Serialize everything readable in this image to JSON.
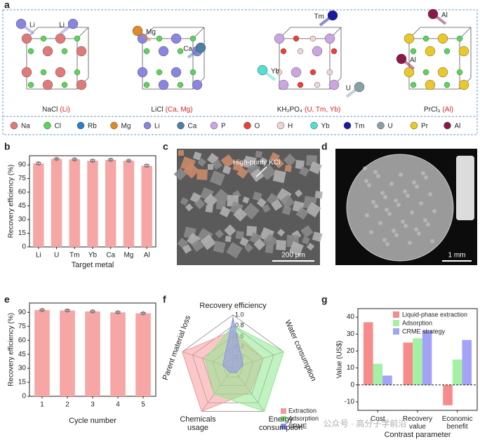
{
  "panel_labels": [
    "a",
    "b",
    "c",
    "d",
    "e",
    "f",
    "g"
  ],
  "panel_a": {
    "crystals": [
      {
        "formula": "NaCl",
        "targets": "(Li)",
        "elements": [
          "Li",
          "Li"
        ]
      },
      {
        "formula": "LiCl",
        "targets": "(Ca, Mg)",
        "elements": [
          "Mg",
          "Ca"
        ]
      },
      {
        "formula": "KH₂PO₄",
        "targets": "(U, Tm, Yb)",
        "elements": [
          "Tm",
          "Yb",
          "U"
        ]
      },
      {
        "formula": "PrCl₃",
        "targets": "(Al)",
        "elements": [
          "Al",
          "Al"
        ]
      }
    ],
    "legend": [
      {
        "name": "Na",
        "color": "#e07a7a"
      },
      {
        "name": "Cl",
        "color": "#5bd45b"
      },
      {
        "name": "Rb",
        "color": "#2a7fc9"
      },
      {
        "name": "Mg",
        "color": "#e08a2a"
      },
      {
        "name": "Li",
        "color": "#8a86e0"
      },
      {
        "name": "Ca",
        "color": "#4f7fa0"
      },
      {
        "name": "P",
        "color": "#c9a6e0"
      },
      {
        "name": "O",
        "color": "#e8413a"
      },
      {
        "name": "H",
        "color": "#f0d4d4"
      },
      {
        "name": "Yb",
        "color": "#4fe0d0"
      },
      {
        "name": "Tm",
        "color": "#1a1aa0"
      },
      {
        "name": "U",
        "color": "#8aa0a8"
      },
      {
        "name": "Pr",
        "color": "#e8c82a"
      },
      {
        "name": "Al",
        "color": "#8a1a4a"
      }
    ]
  },
  "panel_c": {
    "annotation": "High-purity KCl",
    "scale_bar": "200 μm"
  },
  "panel_d": {
    "scale_bar": "1 mm"
  },
  "chart_data": [
    {
      "type": "bar",
      "categories": [
        "Li",
        "U",
        "Tm",
        "Yb",
        "Ca",
        "Mg",
        "Al"
      ],
      "values": [
        91.5,
        96.5,
        96,
        94.5,
        95.5,
        94.5,
        89
      ],
      "error": [
        1.2,
        0.8,
        0.8,
        1,
        0.8,
        0.8,
        1.2
      ],
      "color": "#f7a6a6",
      "ylim": [
        0,
        100
      ],
      "yticks": [
        0,
        15,
        30,
        45,
        60,
        75,
        90
      ],
      "y_label": "Recovery efficiency (%)",
      "x_label": "Target metal"
    },
    {
      "type": "bar",
      "categories": [
        "1",
        "2",
        "3",
        "4",
        "5"
      ],
      "values": [
        92.5,
        92,
        91,
        90,
        89
      ],
      "error": [
        0.8,
        0.8,
        0.8,
        0.8,
        0.8
      ],
      "color": "#f7a6a6",
      "ylim": [
        0,
        100
      ],
      "yticks": [
        0,
        15,
        30,
        45,
        60,
        75,
        90
      ],
      "y_label": "Recovery efficiency (%)",
      "x_label": "Cycle number"
    },
    {
      "type": "radar",
      "axes": [
        "Recovery efficiency",
        "Water consumption",
        "Energy consumption",
        "Chemicals usage",
        "Parent material loss"
      ],
      "rlim": [
        0,
        1
      ],
      "rticks": [
        0.2,
        0.4,
        0.6,
        0.8,
        {
          "value": 1,
          "label": "1.0"
        }
      ],
      "series": [
        {
          "name": "Extraction",
          "color": "#f59a9a",
          "values": [
            0.7,
            0.6,
            0.55,
            1,
            1
          ]
        },
        {
          "name": "Adsorption",
          "color": "#8fe88f",
          "values": [
            0.8,
            1,
            1,
            0.6,
            0.55
          ]
        },
        {
          "name": "CRME",
          "color": "#8f8ff0",
          "values": [
            0.95,
            0.2,
            0.1,
            0.1,
            0.2
          ]
        }
      ]
    },
    {
      "type": "grouped-bar",
      "categories": [
        "Cost",
        "Recovery value",
        "Economic benefit"
      ],
      "series": [
        {
          "name": "Liquid-phase extraction",
          "color": "#f78b8b",
          "values": [
            37,
            25,
            -12
          ]
        },
        {
          "name": "Adsorption",
          "color": "#a4f0a4",
          "values": [
            12.5,
            27.5,
            15
          ]
        },
        {
          "name": "CRME strategy",
          "color": "#a3a3f7",
          "values": [
            5.5,
            32,
            26.5
          ]
        }
      ],
      "ylim": [
        -15,
        45
      ],
      "yticks": [
        -10,
        0,
        10,
        20,
        30,
        40
      ],
      "y_label": "Value (US$)",
      "x_label": "Contrast parameter"
    }
  ],
  "watermark": "公众号 · 高分子学前沿"
}
